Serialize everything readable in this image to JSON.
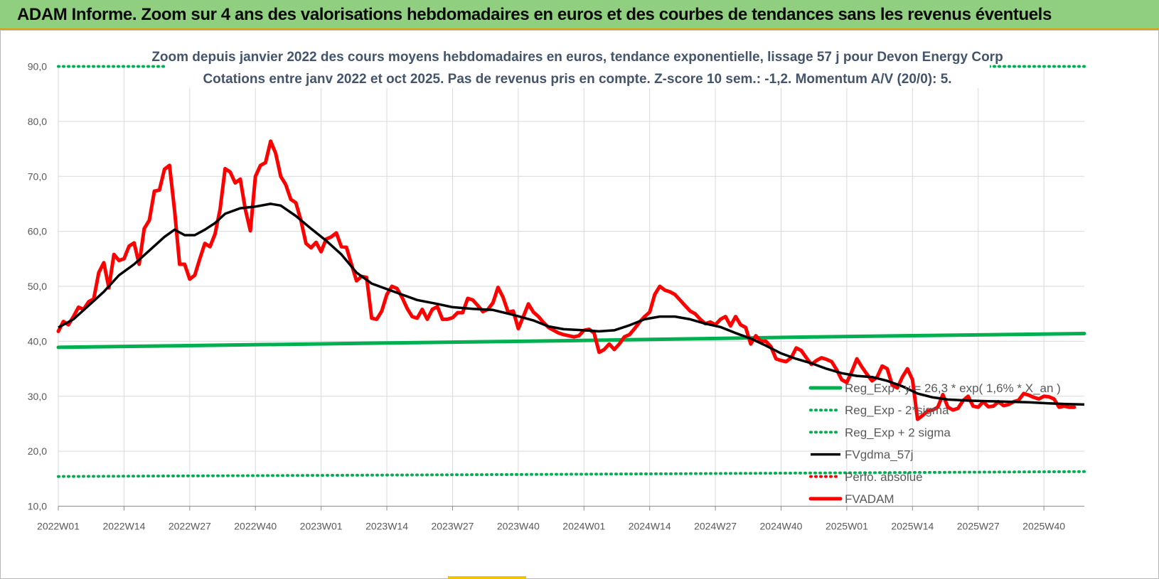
{
  "header": {
    "title": "ADAM Informe. Zoom sur 4 ans des valorisations hebdomadaires en euros et des courbes de tendances sans les revenus éventuels"
  },
  "colors": {
    "banner": "#8fcf7f",
    "regression": "#00b050",
    "moving_average": "#000000",
    "price": "#ff0000",
    "grid": "#d9d9d9"
  },
  "chart_data": {
    "type": "line",
    "title": "Zoom depuis janvier 2022 des cours moyens hebdomadaires en euros, tendance exponentielle, lissage 57 j pour Devon Energy Corp",
    "subtitle": "Cotations entre janv 2022 et oct 2025. Pas de revenus pris en compte. Z-score 10 sem.: -1,2. Momentum A/V (20/0): 5.",
    "ylim": [
      10,
      90
    ],
    "y_ticks": [
      "10,0",
      "20,0",
      "30,0",
      "40,0",
      "50,0",
      "60,0",
      "70,0",
      "80,0",
      "90,0"
    ],
    "x_range": [
      0,
      203
    ],
    "x_ticks": [
      {
        "label": "2022W01",
        "week": 0
      },
      {
        "label": "2022W14",
        "week": 13
      },
      {
        "label": "2022W27",
        "week": 26
      },
      {
        "label": "2022W40",
        "week": 39
      },
      {
        "label": "2023W01",
        "week": 52
      },
      {
        "label": "2023W14",
        "week": 65
      },
      {
        "label": "2023W27",
        "week": 78
      },
      {
        "label": "2023W40",
        "week": 91
      },
      {
        "label": "2024W01",
        "week": 104
      },
      {
        "label": "2024W14",
        "week": 117
      },
      {
        "label": "2024W27",
        "week": 130
      },
      {
        "label": "2024W40",
        "week": 143
      },
      {
        "label": "2025W01",
        "week": 156
      },
      {
        "label": "2025W14",
        "week": 169
      },
      {
        "label": "2025W27",
        "week": 182
      },
      {
        "label": "2025W40",
        "week": 195
      }
    ],
    "series": [
      {
        "name": "Reg_Exp : y = 26,3 * exp( 1,6% * X_an )",
        "style": "solid-thick",
        "color": "#00b050",
        "points": [
          [
            0,
            38.9
          ],
          [
            50,
            39.5
          ],
          [
            100,
            40.1
          ],
          [
            150,
            40.8
          ],
          [
            203,
            41.4
          ]
        ]
      },
      {
        "name": "Reg_Exp - 2*sigma",
        "style": "dotted",
        "color": "#00b050",
        "points": [
          [
            0,
            15.4
          ],
          [
            100,
            15.8
          ],
          [
            203,
            16.3
          ]
        ]
      },
      {
        "name": "Reg_Exp + 2 sigma",
        "style": "dotted",
        "color": "#00b050",
        "points": [
          [
            0,
            90.0
          ],
          [
            203,
            90.0
          ]
        ]
      },
      {
        "name": "FVgdma_57j",
        "style": "solid",
        "color": "#000000",
        "points": [
          [
            0,
            42.5
          ],
          [
            3,
            44
          ],
          [
            6,
            46.5
          ],
          [
            9,
            49
          ],
          [
            12,
            52
          ],
          [
            15,
            54
          ],
          [
            18,
            56.5
          ],
          [
            21,
            59
          ],
          [
            23,
            60.3
          ],
          [
            25,
            59.3
          ],
          [
            27,
            59.3
          ],
          [
            29,
            60.3
          ],
          [
            31,
            61.5
          ],
          [
            33,
            63.2
          ],
          [
            36,
            64.2
          ],
          [
            39,
            64.5
          ],
          [
            42,
            65.0
          ],
          [
            44,
            64.7
          ],
          [
            47,
            62.8
          ],
          [
            50,
            60.5
          ],
          [
            53,
            58.3
          ],
          [
            56,
            55.8
          ],
          [
            59,
            52.5
          ],
          [
            62,
            50.5
          ],
          [
            65,
            49.5
          ],
          [
            68,
            48.5
          ],
          [
            71,
            47.5
          ],
          [
            75,
            46.8
          ],
          [
            78,
            46.2
          ],
          [
            82,
            45.9
          ],
          [
            86,
            45.7
          ],
          [
            90,
            44.8
          ],
          [
            94,
            43.8
          ],
          [
            97,
            42.7
          ],
          [
            100,
            42.2
          ],
          [
            104,
            42.0
          ],
          [
            107,
            41.8
          ],
          [
            110,
            42.0
          ],
          [
            113,
            42.9
          ],
          [
            116,
            44.0
          ],
          [
            119,
            44.5
          ],
          [
            122,
            44.5
          ],
          [
            125,
            44.0
          ],
          [
            128,
            43.2
          ],
          [
            131,
            42.6
          ],
          [
            134,
            41.5
          ],
          [
            137,
            40.5
          ],
          [
            140,
            39.2
          ],
          [
            143,
            37.8
          ],
          [
            146,
            36.8
          ],
          [
            149,
            36.0
          ],
          [
            152,
            35.0
          ],
          [
            155,
            34.2
          ],
          [
            158,
            33.7
          ],
          [
            161,
            33.5
          ],
          [
            164,
            32.8
          ],
          [
            167,
            31.8
          ],
          [
            170,
            30.5
          ],
          [
            173,
            29.8
          ],
          [
            176,
            29.4
          ],
          [
            180,
            29.2
          ],
          [
            184,
            29.1
          ],
          [
            188,
            29.0
          ],
          [
            192,
            28.9
          ],
          [
            196,
            28.7
          ],
          [
            199,
            28.6
          ],
          [
            203,
            28.5
          ]
        ]
      },
      {
        "name": "Perfo. absolue",
        "style": "dotted",
        "color": "#ff0000",
        "points": []
      },
      {
        "name": "FVADAM",
        "style": "solid-thick",
        "color": "#ff0000",
        "points": [
          [
            0,
            41.8
          ],
          [
            1,
            43.6
          ],
          [
            2,
            43.0
          ],
          [
            3,
            44.5
          ],
          [
            4,
            46.2
          ],
          [
            5,
            45.8
          ],
          [
            6,
            47.2
          ],
          [
            7,
            47.7
          ],
          [
            8,
            52.5
          ],
          [
            9,
            54.3
          ],
          [
            10,
            49.7
          ],
          [
            11,
            55.8
          ],
          [
            12,
            54.7
          ],
          [
            13,
            55.0
          ],
          [
            14,
            57.3
          ],
          [
            15,
            57.9
          ],
          [
            16,
            54.0
          ],
          [
            17,
            60.5
          ],
          [
            18,
            62.0
          ],
          [
            19,
            67.3
          ],
          [
            20,
            67.5
          ],
          [
            21,
            71.3
          ],
          [
            22,
            72.0
          ],
          [
            23,
            63.8
          ],
          [
            24,
            54.0
          ],
          [
            25,
            54.0
          ],
          [
            26,
            51.3
          ],
          [
            27,
            52.0
          ],
          [
            28,
            55.0
          ],
          [
            29,
            57.8
          ],
          [
            30,
            57.2
          ],
          [
            31,
            59.5
          ],
          [
            32,
            64.0
          ],
          [
            33,
            71.4
          ],
          [
            34,
            70.8
          ],
          [
            35,
            68.8
          ],
          [
            36,
            69.5
          ],
          [
            37,
            64.0
          ],
          [
            38,
            60.1
          ],
          [
            39,
            70.0
          ],
          [
            40,
            72.0
          ],
          [
            41,
            72.5
          ],
          [
            42,
            76.4
          ],
          [
            43,
            74.2
          ],
          [
            44,
            70.0
          ],
          [
            45,
            68.5
          ],
          [
            46,
            65.8
          ],
          [
            47,
            65.2
          ],
          [
            48,
            62.0
          ],
          [
            49,
            57.8
          ],
          [
            50,
            57.0
          ],
          [
            51,
            58.0
          ],
          [
            52,
            56.3
          ],
          [
            53,
            58.6
          ],
          [
            54,
            59.0
          ],
          [
            55,
            59.7
          ],
          [
            56,
            57.2
          ],
          [
            57,
            57.1
          ],
          [
            58,
            54.0
          ],
          [
            59,
            51.0
          ],
          [
            60,
            51.8
          ],
          [
            61,
            51.6
          ],
          [
            62,
            44.2
          ],
          [
            63,
            44.0
          ],
          [
            64,
            45.5
          ],
          [
            65,
            48.5
          ],
          [
            66,
            50.0
          ],
          [
            67,
            49.6
          ],
          [
            68,
            48.0
          ],
          [
            69,
            46.0
          ],
          [
            70,
            44.5
          ],
          [
            71,
            44.2
          ],
          [
            72,
            45.8
          ],
          [
            73,
            44.0
          ],
          [
            74,
            45.8
          ],
          [
            75,
            46.3
          ],
          [
            76,
            44.0
          ],
          [
            77,
            44.0
          ],
          [
            78,
            44.3
          ],
          [
            79,
            45.2
          ],
          [
            80,
            45.2
          ],
          [
            81,
            47.8
          ],
          [
            82,
            47.5
          ],
          [
            83,
            46.5
          ],
          [
            84,
            45.4
          ],
          [
            85,
            45.8
          ],
          [
            86,
            47.0
          ],
          [
            87,
            49.8
          ],
          [
            88,
            48.0
          ],
          [
            89,
            45.3
          ],
          [
            90,
            45.5
          ],
          [
            91,
            42.3
          ],
          [
            92,
            44.5
          ],
          [
            93,
            46.8
          ],
          [
            94,
            45.3
          ],
          [
            95,
            44.5
          ],
          [
            96,
            43.4
          ],
          [
            97,
            42.5
          ],
          [
            98,
            42.0
          ],
          [
            99,
            41.5
          ],
          [
            100,
            41.2
          ],
          [
            101,
            41.0
          ],
          [
            102,
            40.8
          ],
          [
            103,
            41.0
          ],
          [
            104,
            42.0
          ],
          [
            105,
            42.2
          ],
          [
            106,
            41.5
          ],
          [
            107,
            38.0
          ],
          [
            108,
            38.5
          ],
          [
            109,
            39.5
          ],
          [
            110,
            38.5
          ],
          [
            111,
            39.5
          ],
          [
            112,
            40.8
          ],
          [
            113,
            41.2
          ],
          [
            114,
            42.3
          ],
          [
            115,
            43.5
          ],
          [
            116,
            44.5
          ],
          [
            117,
            45.3
          ],
          [
            118,
            48.5
          ],
          [
            119,
            50.0
          ],
          [
            120,
            49.3
          ],
          [
            121,
            49.0
          ],
          [
            122,
            48.5
          ],
          [
            123,
            47.5
          ],
          [
            124,
            46.5
          ],
          [
            125,
            45.5
          ],
          [
            126,
            45.0
          ],
          [
            127,
            44.0
          ],
          [
            128,
            43.2
          ],
          [
            129,
            43.5
          ],
          [
            130,
            43.0
          ],
          [
            131,
            44.0
          ],
          [
            132,
            44.5
          ],
          [
            133,
            42.8
          ],
          [
            134,
            44.5
          ],
          [
            135,
            43.0
          ],
          [
            136,
            42.5
          ],
          [
            137,
            39.5
          ],
          [
            138,
            41.0
          ],
          [
            139,
            40.0
          ],
          [
            140,
            40.0
          ],
          [
            141,
            39.0
          ],
          [
            142,
            36.8
          ],
          [
            143,
            36.5
          ],
          [
            144,
            36.3
          ],
          [
            145,
            37.0
          ],
          [
            146,
            38.8
          ],
          [
            147,
            38.3
          ],
          [
            148,
            37.0
          ],
          [
            149,
            35.8
          ],
          [
            150,
            36.5
          ],
          [
            151,
            37.0
          ],
          [
            152,
            36.7
          ],
          [
            153,
            36.3
          ],
          [
            154,
            34.8
          ],
          [
            155,
            33.0
          ],
          [
            156,
            32.5
          ],
          [
            157,
            34.5
          ],
          [
            158,
            36.8
          ],
          [
            159,
            35.3
          ],
          [
            160,
            34.0
          ],
          [
            161,
            32.8
          ],
          [
            162,
            33.5
          ],
          [
            163,
            35.5
          ],
          [
            164,
            35.0
          ],
          [
            165,
            32.0
          ],
          [
            166,
            31.5
          ],
          [
            167,
            33.5
          ],
          [
            168,
            35.0
          ],
          [
            169,
            33.0
          ],
          [
            170,
            25.8
          ],
          [
            171,
            26.5
          ],
          [
            172,
            27.3
          ],
          [
            173,
            27.5
          ],
          [
            174,
            28.0
          ],
          [
            175,
            30.3
          ],
          [
            176,
            28.0
          ],
          [
            177,
            27.5
          ],
          [
            178,
            27.8
          ],
          [
            179,
            29.2
          ],
          [
            180,
            30.0
          ],
          [
            181,
            28.2
          ],
          [
            182,
            28.0
          ],
          [
            183,
            29.0
          ],
          [
            184,
            28.1
          ],
          [
            185,
            28.2
          ],
          [
            186,
            29.0
          ],
          [
            187,
            28.3
          ],
          [
            188,
            28.5
          ],
          [
            189,
            29.0
          ],
          [
            190,
            29.3
          ],
          [
            191,
            30.5
          ],
          [
            192,
            30.2
          ],
          [
            193,
            29.8
          ],
          [
            194,
            29.5
          ],
          [
            195,
            30.0
          ],
          [
            196,
            29.9
          ],
          [
            197,
            29.5
          ],
          [
            198,
            28.0
          ],
          [
            199,
            28.2
          ],
          [
            200,
            28.0
          ],
          [
            201,
            28.0
          ]
        ]
      }
    ],
    "legend_position": "bottom-right"
  }
}
